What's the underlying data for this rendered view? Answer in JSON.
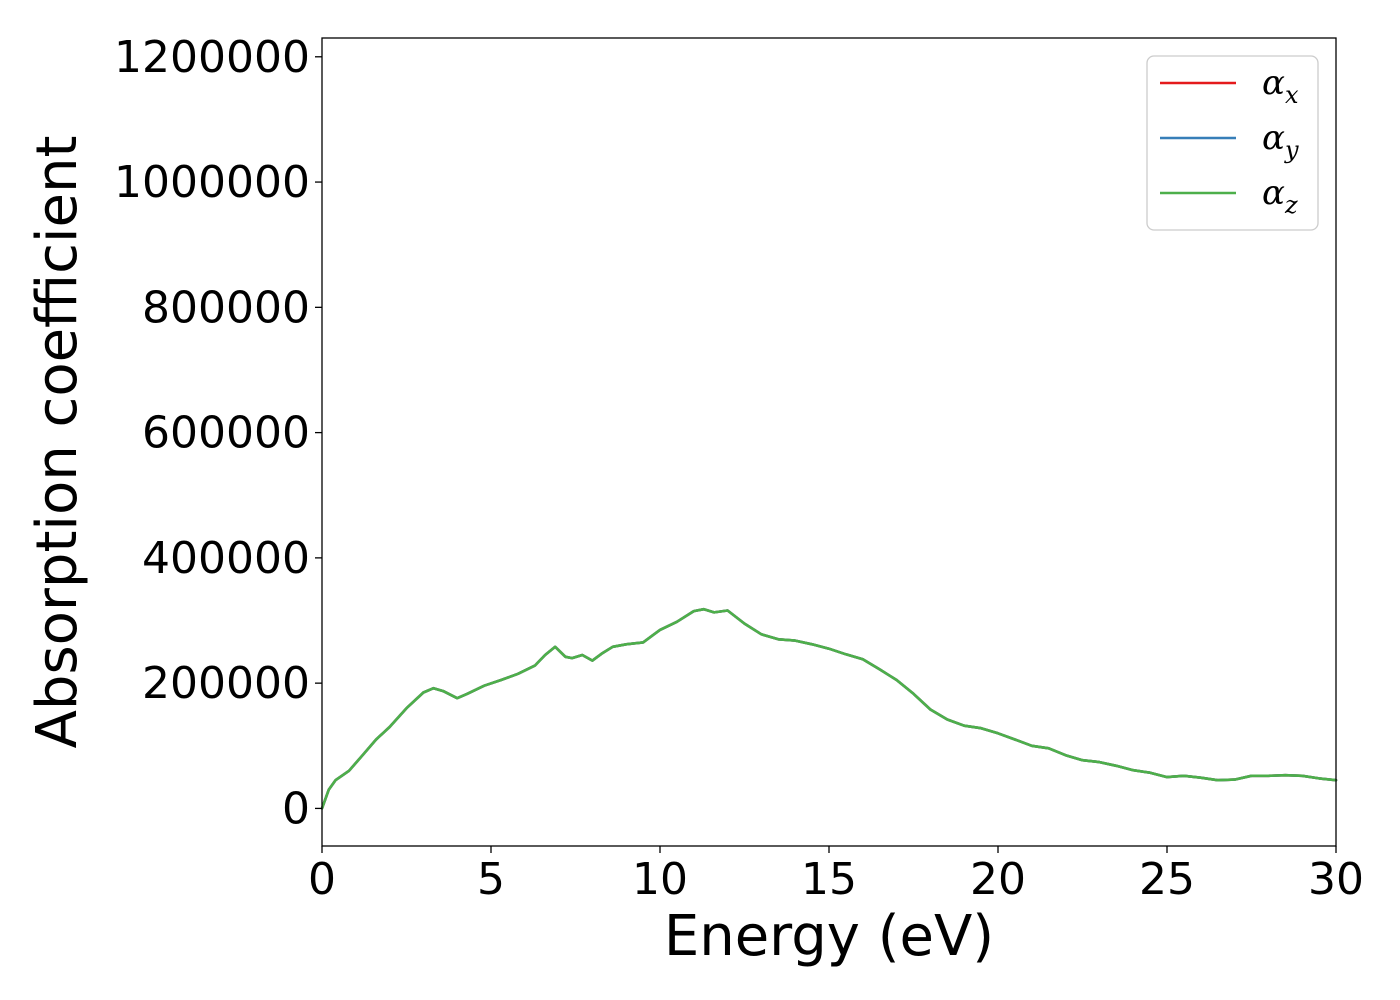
{
  "chart_data": {
    "type": "line",
    "title": "",
    "xlabel": "Energy (eV)",
    "ylabel": "Absorption coefficient",
    "xlim": [
      0,
      30
    ],
    "ylim": [
      -60000,
      1230000
    ],
    "xticks": [
      0,
      5,
      10,
      15,
      20,
      25,
      30
    ],
    "xtick_labels": [
      "0",
      "5",
      "10",
      "15",
      "20",
      "25",
      "30"
    ],
    "yticks": [
      0,
      200000,
      400000,
      600000,
      800000,
      1000000,
      1200000
    ],
    "ytick_labels": [
      "0",
      "200000",
      "400000",
      "600000",
      "800000",
      "1000000",
      "1200000"
    ],
    "grid": false,
    "legend_position": "top-right",
    "series": [
      {
        "name": "α",
        "subscript": "x",
        "color": "#e41a1c",
        "x": [
          0,
          0.2,
          0.4,
          0.8,
          1.2,
          1.6,
          2.0,
          2.5,
          3.0,
          3.3,
          3.6,
          4.0,
          4.3,
          4.8,
          5.3,
          5.8,
          6.3,
          6.6,
          6.9,
          7.2,
          7.4,
          7.7,
          8.0,
          8.3,
          8.6,
          9.0,
          9.5,
          10.0,
          10.5,
          11.0,
          11.3,
          11.6,
          12.0,
          12.5,
          13.0,
          13.5,
          14.0,
          14.5,
          15.0,
          15.5,
          16.0,
          16.5,
          17.0,
          17.5,
          18.0,
          18.5,
          19.0,
          19.5,
          20.0,
          20.5,
          21.0,
          21.5,
          22.0,
          22.5,
          23.0,
          23.5,
          24.0,
          24.5,
          25.0,
          25.5,
          26.0,
          26.5,
          27.0,
          27.5,
          28.0,
          28.5,
          29.0,
          29.5,
          30.0
        ],
        "y": [
          0,
          30000,
          45000,
          60000,
          85000,
          110000,
          130000,
          160000,
          185000,
          192000,
          187000,
          176000,
          183000,
          196000,
          205000,
          215000,
          228000,
          245000,
          258000,
          242000,
          240000,
          245000,
          236000,
          248000,
          258000,
          262000,
          265000,
          285000,
          298000,
          315000,
          318000,
          313000,
          316000,
          295000,
          278000,
          270000,
          268000,
          262000,
          255000,
          246000,
          238000,
          222000,
          205000,
          183000,
          158000,
          142000,
          132000,
          128000,
          120000,
          110000,
          100000,
          96000,
          85000,
          77000,
          74000,
          68000,
          61000,
          57000,
          50000,
          52000,
          49000,
          45000,
          46000,
          52000,
          52000,
          53000,
          52000,
          48000,
          45000
        ]
      },
      {
        "name": "α",
        "subscript": "y",
        "color": "#377eb8",
        "x": [
          0,
          0.2,
          0.4,
          0.8,
          1.2,
          1.6,
          2.0,
          2.5,
          3.0,
          3.3,
          3.6,
          4.0,
          4.3,
          4.8,
          5.3,
          5.8,
          6.3,
          6.6,
          6.9,
          7.2,
          7.4,
          7.7,
          8.0,
          8.3,
          8.6,
          9.0,
          9.5,
          10.0,
          10.5,
          11.0,
          11.3,
          11.6,
          12.0,
          12.5,
          13.0,
          13.5,
          14.0,
          14.5,
          15.0,
          15.5,
          16.0,
          16.5,
          17.0,
          17.5,
          18.0,
          18.5,
          19.0,
          19.5,
          20.0,
          20.5,
          21.0,
          21.5,
          22.0,
          22.5,
          23.0,
          23.5,
          24.0,
          24.5,
          25.0,
          25.5,
          26.0,
          26.5,
          27.0,
          27.5,
          28.0,
          28.5,
          29.0,
          29.5,
          30.0
        ],
        "y": [
          0,
          30000,
          45000,
          60000,
          85000,
          110000,
          130000,
          160000,
          185000,
          192000,
          187000,
          176000,
          183000,
          196000,
          205000,
          215000,
          228000,
          245000,
          258000,
          242000,
          240000,
          245000,
          236000,
          248000,
          258000,
          262000,
          265000,
          285000,
          298000,
          315000,
          318000,
          313000,
          316000,
          295000,
          278000,
          270000,
          268000,
          262000,
          255000,
          246000,
          238000,
          222000,
          205000,
          183000,
          158000,
          142000,
          132000,
          128000,
          120000,
          110000,
          100000,
          96000,
          85000,
          77000,
          74000,
          68000,
          61000,
          57000,
          50000,
          52000,
          49000,
          45000,
          46000,
          52000,
          52000,
          53000,
          52000,
          48000,
          45000
        ]
      },
      {
        "name": "α",
        "subscript": "z",
        "color": "#4daf4a",
        "x": [
          0,
          0.2,
          0.4,
          0.8,
          1.2,
          1.6,
          2.0,
          2.5,
          3.0,
          3.3,
          3.6,
          4.0,
          4.3,
          4.8,
          5.3,
          5.8,
          6.3,
          6.6,
          6.9,
          7.2,
          7.4,
          7.7,
          8.0,
          8.3,
          8.6,
          9.0,
          9.5,
          10.0,
          10.5,
          11.0,
          11.3,
          11.6,
          12.0,
          12.5,
          13.0,
          13.5,
          14.0,
          14.5,
          15.0,
          15.5,
          16.0,
          16.5,
          17.0,
          17.5,
          18.0,
          18.5,
          19.0,
          19.5,
          20.0,
          20.5,
          21.0,
          21.5,
          22.0,
          22.5,
          23.0,
          23.5,
          24.0,
          24.5,
          25.0,
          25.5,
          26.0,
          26.5,
          27.0,
          27.5,
          28.0,
          28.5,
          29.0,
          29.5,
          30.0
        ],
        "y": [
          0,
          30000,
          45000,
          60000,
          85000,
          110000,
          130000,
          160000,
          185000,
          192000,
          187000,
          176000,
          183000,
          196000,
          205000,
          215000,
          228000,
          245000,
          258000,
          242000,
          240000,
          245000,
          236000,
          248000,
          258000,
          262000,
          265000,
          285000,
          298000,
          315000,
          318000,
          313000,
          316000,
          295000,
          278000,
          270000,
          268000,
          262000,
          255000,
          246000,
          238000,
          222000,
          205000,
          183000,
          158000,
          142000,
          132000,
          128000,
          120000,
          110000,
          100000,
          96000,
          85000,
          77000,
          74000,
          68000,
          61000,
          57000,
          50000,
          52000,
          49000,
          45000,
          46000,
          52000,
          52000,
          53000,
          52000,
          48000,
          45000
        ]
      }
    ]
  }
}
